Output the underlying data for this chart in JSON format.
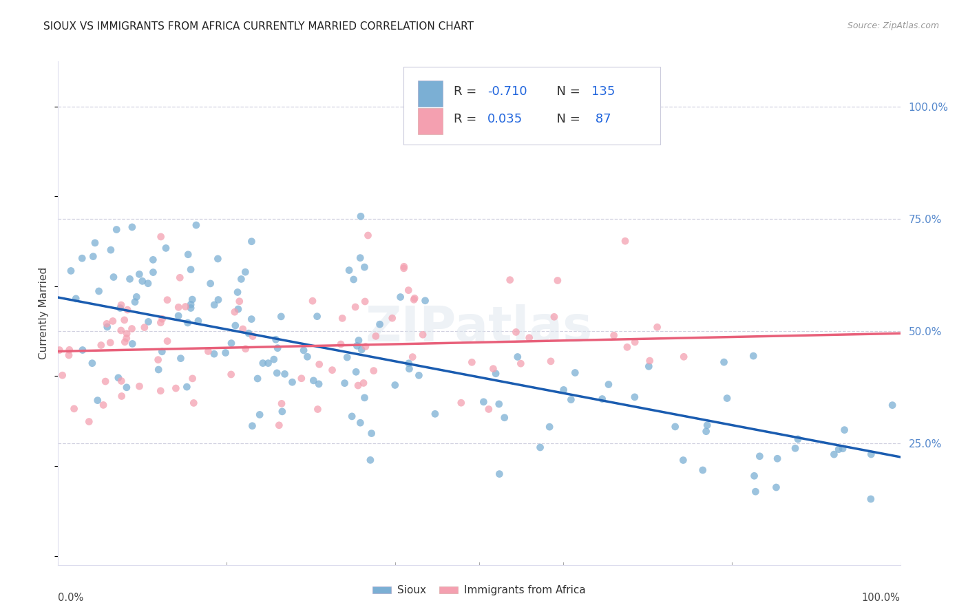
{
  "title": "SIOUX VS IMMIGRANTS FROM AFRICA CURRENTLY MARRIED CORRELATION CHART",
  "source": "Source: ZipAtlas.com",
  "ylabel": "Currently Married",
  "ytick_labels": [
    "100.0%",
    "75.0%",
    "50.0%",
    "25.0%"
  ],
  "ytick_values": [
    1.0,
    0.75,
    0.5,
    0.25
  ],
  "xlim": [
    0.0,
    1.0
  ],
  "ylim": [
    -0.02,
    1.1
  ],
  "plot_ylim": [
    0.0,
    1.0
  ],
  "sioux_color": "#7BAFD4",
  "africa_color": "#F4A0B0",
  "sioux_line_color": "#1A5CB0",
  "africa_line_color": "#E8607A",
  "watermark": "ZIPatlas",
  "sioux_R": -0.71,
  "sioux_N": 135,
  "africa_R": 0.035,
  "africa_N": 87,
  "sioux_intercept": 0.575,
  "sioux_slope": -0.355,
  "africa_intercept": 0.455,
  "africa_slope": 0.04,
  "background_color": "#FFFFFF",
  "grid_color": "#CCCCDD",
  "right_axis_color": "#5588CC",
  "legend_R_color": "#2266DD",
  "legend_N_color": "#2266DD"
}
